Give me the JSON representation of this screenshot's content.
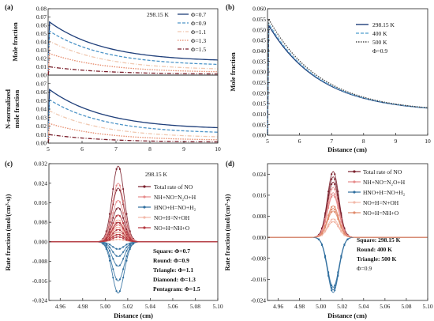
{
  "chart_data": [
    {
      "id": "a",
      "type": "line",
      "panel_label": "(a)",
      "temperature_label": "298.15 K",
      "subplots": [
        {
          "ylabel": "Mole fraction",
          "ylim": [
            0,
            0.08
          ],
          "yticks": [
            "0.00",
            "0.01",
            "0.02",
            "0.03",
            "0.04",
            "0.05",
            "0.06",
            "0.07",
            "0.08"
          ]
        },
        {
          "ylabel": "N-normalized mole fraction",
          "ylim": [
            0,
            0.08
          ],
          "yticks": [
            "0.00",
            "0.01",
            "0.02",
            "0.03",
            "0.04",
            "0.05",
            "0.06",
            "0.07"
          ]
        }
      ],
      "xlim": [
        5,
        10
      ],
      "xticks": [
        "5",
        "6",
        "7",
        "8",
        "9",
        "10"
      ],
      "legend": "top-right",
      "series": [
        {
          "name": "Φ=0.7",
          "color": "#1f3f7a",
          "dash": "solid",
          "peak": [
            0.064,
            0.063
          ],
          "end": [
            0.016,
            0.016
          ]
        },
        {
          "name": "Φ=0.9",
          "color": "#4e95c8",
          "dash": "dashed",
          "peak": [
            0.053,
            0.051
          ],
          "end": [
            0.011,
            0.011
          ]
        },
        {
          "name": "Φ=1.1",
          "color": "#f0c8b0",
          "dash": "dashdot",
          "peak": [
            0.041,
            0.038
          ],
          "end": [
            0.006,
            0.006
          ]
        },
        {
          "name": "Φ=1.3",
          "color": "#e68a6a",
          "dash": "dotted",
          "peak": [
            0.026,
            0.023
          ],
          "end": [
            0.003,
            0.003
          ]
        },
        {
          "name": "Φ=1.5",
          "color": "#7a1f2b",
          "dash": "dashdot",
          "peak": [
            0.01,
            0.01
          ],
          "end": [
            0.001,
            0.001
          ]
        }
      ]
    },
    {
      "id": "b",
      "type": "line",
      "panel_label": "(b)",
      "xlabel": "Distance (cm)",
      "ylabel": "Mole fraction",
      "xlim": [
        5,
        10
      ],
      "ylim": [
        0,
        0.06
      ],
      "xticks": [
        "5",
        "6",
        "7",
        "8",
        "9",
        "10"
      ],
      "yticks": [
        "0.000",
        "0.005",
        "0.010",
        "0.015",
        "0.020",
        "0.025",
        "0.030",
        "0.035",
        "0.040",
        "0.045",
        "0.050",
        "0.055",
        "0.060"
      ],
      "legend": "top-right",
      "annotation": "Φ=0.9",
      "series": [
        {
          "name": "298.15 K",
          "color": "#1f3f7a",
          "dash": "solid",
          "peak": 0.052,
          "end": 0.011
        },
        {
          "name": "400 K",
          "color": "#6baed6",
          "dash": "dashed",
          "peak": 0.053,
          "end": 0.011
        },
        {
          "name": "500 K",
          "color": "#4a4a4a",
          "dash": "dotted",
          "peak": 0.055,
          "end": 0.011
        }
      ]
    },
    {
      "id": "c",
      "type": "line",
      "panel_label": "(c)",
      "temperature_label": "298.15 K",
      "xlabel": "Distance (cm)",
      "ylabel": "Rate fraction (mol/(cm³·s))",
      "xlim": [
        4.95,
        5.1
      ],
      "ylim": [
        -0.024,
        0.032
      ],
      "xticks": [
        "4.96",
        "4.98",
        "5.00",
        "5.02",
        "5.04",
        "5.06",
        "5.08",
        "5.10"
      ],
      "yticks": [
        "-0.024",
        "-0.016",
        "-0.008",
        "0.000",
        "0.008",
        "0.016",
        "0.024",
        "0.032"
      ],
      "legend": "top-right",
      "series": [
        {
          "name": "Total rate of NO",
          "color": "#7a1f2b",
          "peaks": [
            0.031,
            0.022,
            0.014,
            0.008,
            0.004
          ]
        },
        {
          "name": "NH+NO=N₂O+H",
          "color": "#e68a8a",
          "peaks": [
            0.024,
            0.017,
            0.011,
            0.007,
            0.003
          ]
        },
        {
          "name": "HNO+H=NO+H₂",
          "color": "#2f6e9e",
          "peaks": [
            -0.021,
            -0.016,
            -0.01,
            -0.006,
            -0.003
          ]
        },
        {
          "name": "NO+H=N+OH",
          "color": "#f2b8a8",
          "peaks": [
            0.009,
            0.006,
            0.004,
            0.003,
            0.001
          ]
        },
        {
          "name": "NO+H=NH+O",
          "color": "#b5363e",
          "peaks": [
            0.011,
            0.008,
            0.005,
            0.003,
            0.002
          ]
        }
      ],
      "notes": [
        "Square: Φ=0.7",
        "Round: Φ=0.9",
        "Triangle: Φ=1.1",
        "Diamond: Φ=1.3",
        "Pentagram: Φ=1.5"
      ]
    },
    {
      "id": "d",
      "type": "line",
      "panel_label": "(d)",
      "xlabel": "Distance (cm)",
      "ylabel": "Rate fraction (mol/(cm³·s))",
      "xlim": [
        4.95,
        5.1
      ],
      "ylim": [
        -0.024,
        0.028
      ],
      "xticks": [
        "4.96",
        "4.98",
        "5.00",
        "5.02",
        "5.04",
        "5.06",
        "5.08",
        "5.10"
      ],
      "yticks": [
        "-0.024",
        "-0.016",
        "-0.008",
        "0.000",
        "0.008",
        "0.016",
        "0.024"
      ],
      "legend": "top-right",
      "series": [
        {
          "name": "Total rate of NO",
          "color": "#7a1f2b",
          "peaks": [
            0.025,
            0.023,
            0.021
          ]
        },
        {
          "name": "NH+NO=N₂O+H",
          "color": "#e68a8a",
          "peaks": [
            0.019,
            0.017,
            0.016
          ]
        },
        {
          "name": "HNO+H=NO+H₂",
          "color": "#2f6e9e",
          "peaks": [
            -0.021,
            -0.02,
            -0.019
          ]
        },
        {
          "name": "NO+H=N+OH",
          "color": "#f2b8a8",
          "peaks": [
            0.007,
            0.006,
            0.006
          ]
        },
        {
          "name": "NO+H=NH+O",
          "color": "#e08a6a",
          "peaks": [
            0.012,
            0.011,
            0.01
          ]
        }
      ],
      "notes": [
        "Square: 298.15 K",
        "Round: 400 K",
        "Triangle: 500 K"
      ],
      "annotation": "Φ=0.9"
    }
  ]
}
